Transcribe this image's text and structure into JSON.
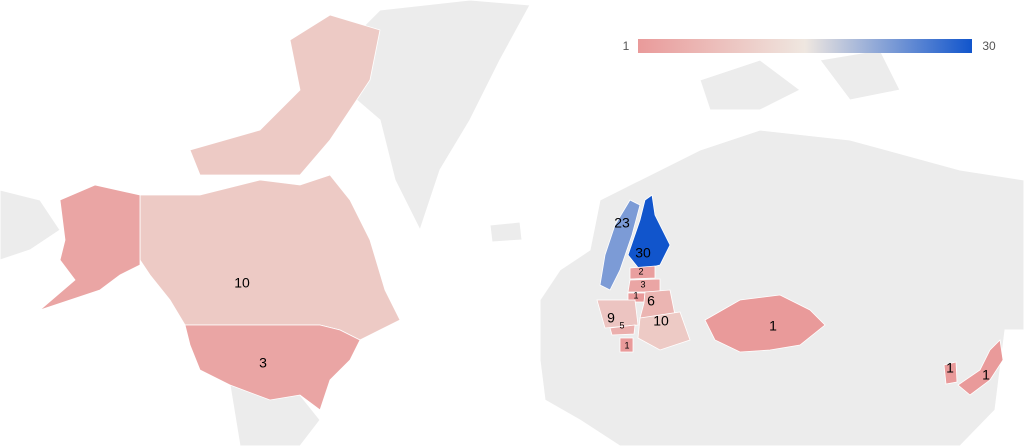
{
  "chart_data": {
    "type": "geo",
    "colorAxis": {
      "minValue": 1,
      "maxValue": 30,
      "colors": [
        "#e99a9a",
        "#efe7e0",
        "#1155cc"
      ]
    },
    "regions": [
      {
        "value": 10
      },
      {
        "value": 10
      },
      {
        "value": 3
      },
      {
        "value": 3
      },
      {
        "value": 23
      },
      {
        "value": 30
      },
      {
        "value": 2
      },
      {
        "value": 3
      },
      {
        "value": 1
      },
      {
        "value": 6
      },
      {
        "value": 9
      },
      {
        "value": 5
      },
      {
        "value": 10
      },
      {
        "value": 1
      },
      {
        "value": 1
      },
      {
        "value": 1
      },
      {
        "value": 1
      }
    ]
  }
}
